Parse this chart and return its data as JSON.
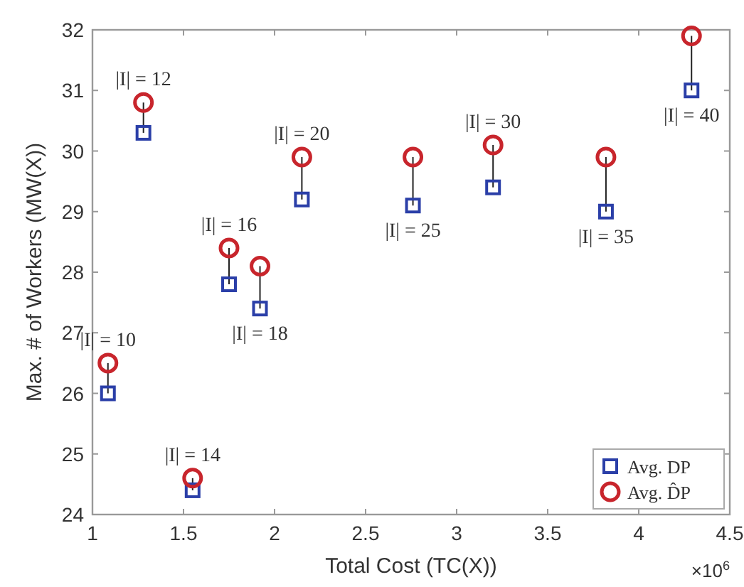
{
  "chart_data": {
    "type": "scatter",
    "xlabel": "Total Cost (TC(X))",
    "ylabel": "Max. # of Workers (MW(X))",
    "xlim": [
      1,
      4.5
    ],
    "xticks": [
      1,
      1.5,
      2,
      2.5,
      3,
      3.5,
      4,
      4.5
    ],
    "ylim": [
      24,
      32
    ],
    "yticks": [
      24,
      25,
      26,
      27,
      28,
      29,
      30,
      31,
      32
    ],
    "x": [
      1.085,
      1.28,
      1.55,
      1.75,
      1.92,
      2.15,
      2.76,
      3.2,
      3.82,
      4.29
    ],
    "series": [
      {
        "name": "Avg. DP",
        "color": "#2b3fa8",
        "marker": "square",
        "values": [
          26.0,
          30.3,
          24.4,
          27.8,
          27.4,
          29.2,
          29.1,
          29.4,
          29.0,
          31.0
        ]
      },
      {
        "name": "Avg. D̂P",
        "color": "#c8252c",
        "marker": "circle",
        "values": [
          26.5,
          30.8,
          24.6,
          28.4,
          28.1,
          29.9,
          29.9,
          30.1,
          29.9,
          31.9
        ]
      }
    ],
    "legend": "bottom right",
    "grid": false,
    "annotations": [
      {
        "text": "|I| = 10",
        "x": 1.085,
        "y": 26.5
      },
      {
        "text": "|I| = 12",
        "x": 1.28,
        "y": 30.8
      },
      {
        "text": "|I| = 14",
        "x": 1.55,
        "y": 24.6
      },
      {
        "text": "|I| = 16",
        "x": 1.75,
        "y": 28.4
      },
      {
        "text": "|I| = 18",
        "x": 1.92,
        "y": 27.4
      },
      {
        "text": "|I| = 20",
        "x": 2.15,
        "y": 29.9
      },
      {
        "text": "|I| = 25",
        "x": 2.76,
        "y": 29.1
      },
      {
        "text": "|I| = 30",
        "x": 3.2,
        "y": 30.1
      },
      {
        "text": "|I| = 35",
        "x": 3.82,
        "y": 29.0
      },
      {
        "text": "|I| = 40",
        "x": 4.29,
        "y": 31.0
      },
      "×10$^{6}$"
    ]
  }
}
